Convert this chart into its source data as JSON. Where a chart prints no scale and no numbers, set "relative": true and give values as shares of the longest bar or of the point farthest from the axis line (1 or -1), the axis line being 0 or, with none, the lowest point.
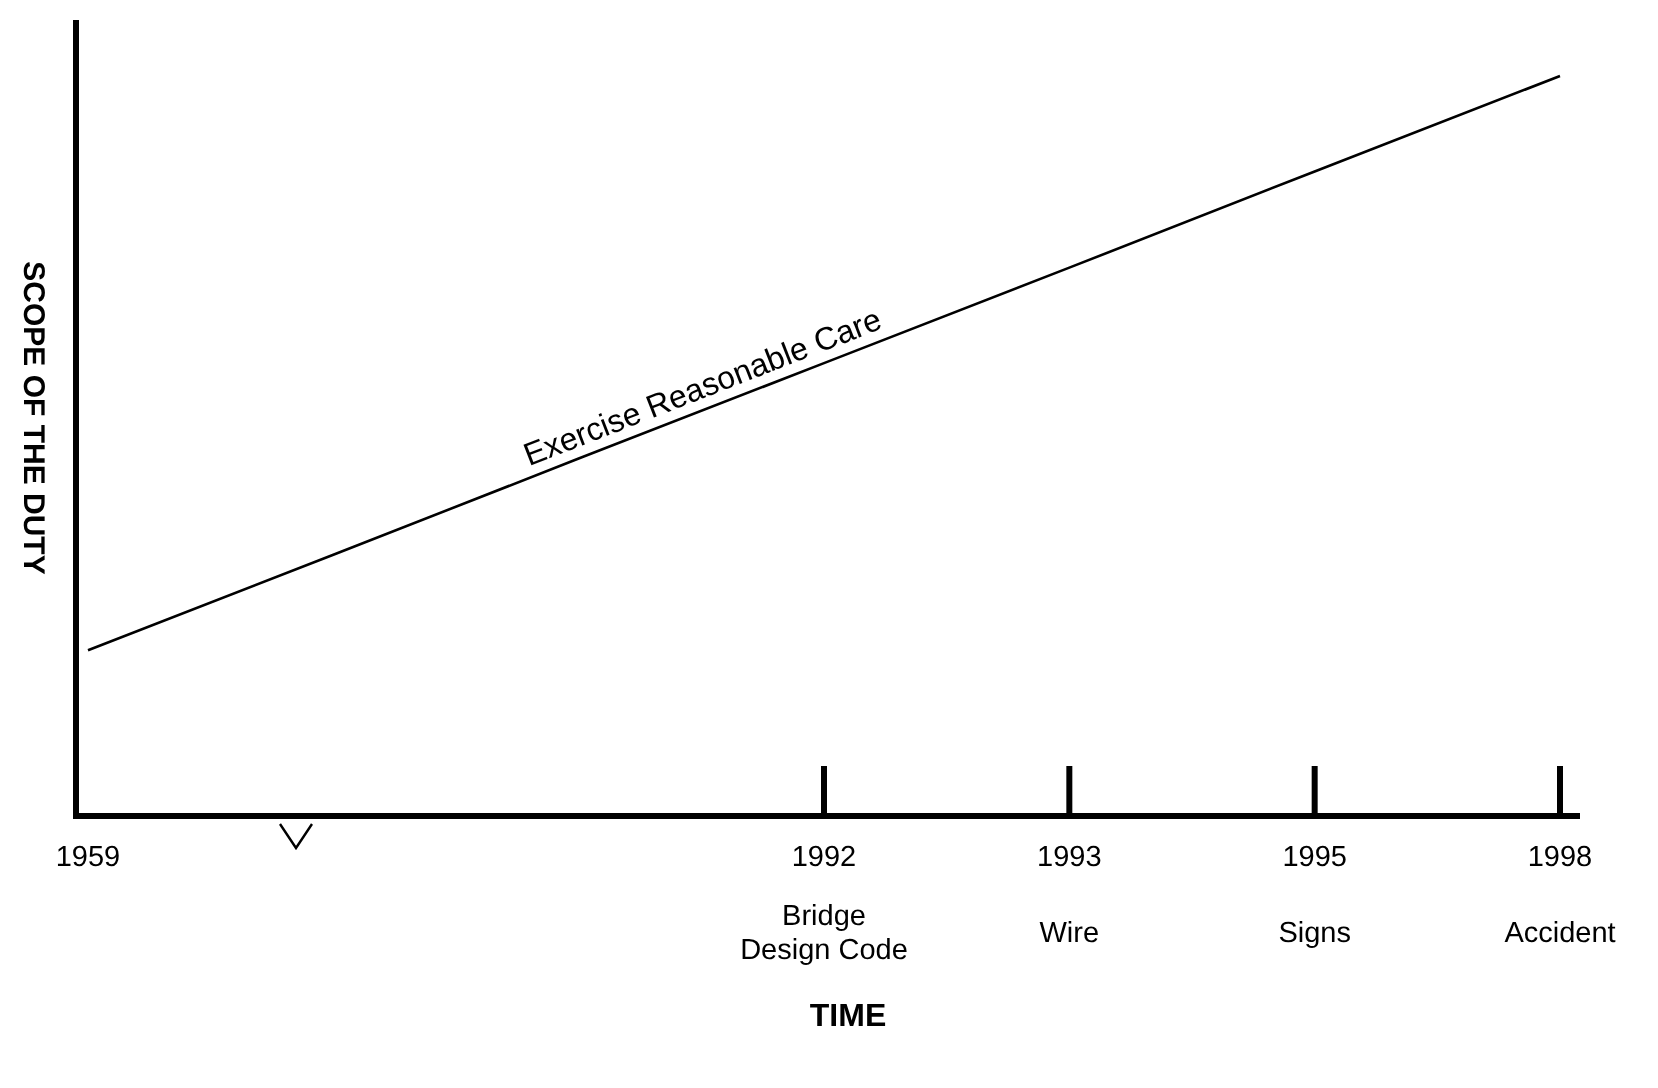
{
  "chart_data": {
    "type": "line",
    "relative": true,
    "xlabel": "TIME",
    "ylabel": "SCOPE OF THE DUTY",
    "categories": [
      "1959",
      null,
      null,
      "1992\nBridge\nDesign Code",
      "1993\nWire",
      "1995\nSigns",
      "1998\nAccident"
    ],
    "series": [
      {
        "name": "Exercise Reasonable Care",
        "color": "#000000",
        "values": [
          0.224,
          0.353,
          0.483,
          0.612,
          0.741,
          0.871,
          1
        ]
      }
    ],
    "grid": false
  }
}
